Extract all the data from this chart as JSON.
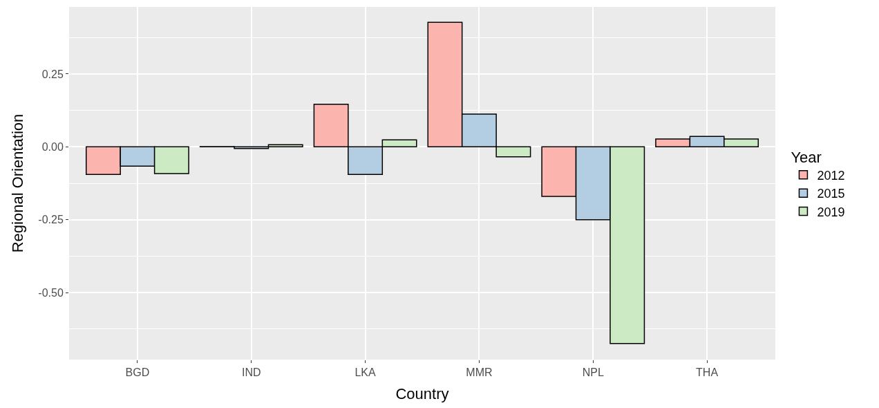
{
  "chart_data": {
    "type": "bar",
    "xlabel": "Country",
    "ylabel": "Regional Orientation",
    "legend_title": "Year",
    "categories": [
      "BGD",
      "IND",
      "LKA",
      "MMR",
      "NPL",
      "THA"
    ],
    "series": [
      {
        "name": "2012",
        "color": "#fbb4ae",
        "values": [
          -0.095,
          0.001,
          0.146,
          0.427,
          -0.17,
          0.027
        ]
      },
      {
        "name": "2015",
        "color": "#b3cde3",
        "values": [
          -0.066,
          -0.006,
          -0.095,
          0.112,
          -0.25,
          0.036
        ]
      },
      {
        "name": "2019",
        "color": "#ccebc5",
        "values": [
          -0.092,
          0.007,
          0.024,
          -0.034,
          -0.675,
          0.027
        ]
      }
    ],
    "ylim": [
      -0.73,
      0.48
    ],
    "yticks": [
      {
        "value": -0.5,
        "label": "-0.50"
      },
      {
        "value": -0.25,
        "label": "-0.25"
      },
      {
        "value": 0,
        "label": "0.00"
      },
      {
        "value": 0.25,
        "label": "0.25"
      }
    ],
    "grid": true,
    "legend": "right"
  }
}
